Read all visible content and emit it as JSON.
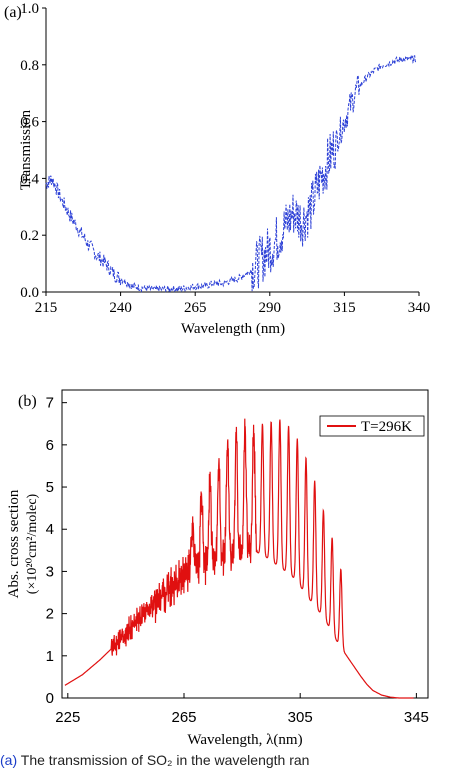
{
  "chart_data": [
    {
      "panel_label": "(a)",
      "type": "line",
      "xlabel": "Wavelength (nm)",
      "ylabel": "Transmission",
      "xlim": [
        215,
        340
      ],
      "ylim": [
        0.0,
        1.0
      ],
      "xticks": [
        "215",
        "240",
        "265",
        "290",
        "315",
        "340"
      ],
      "yticks": [
        "0.0",
        "0.2",
        "0.4",
        "0.6",
        "0.8",
        "1.0"
      ],
      "series_color": "#2b3fd6",
      "series": [
        {
          "name": "",
          "x": [
            215,
            217,
            220,
            223,
            226,
            229,
            232,
            235,
            238,
            241,
            244,
            247,
            250,
            253,
            256,
            259,
            262,
            265,
            268,
            271,
            274,
            277,
            280,
            283,
            286,
            289,
            292,
            295,
            298,
            301,
            304,
            307,
            310,
            313,
            316,
            319,
            322,
            325,
            328,
            331,
            334,
            337,
            339
          ],
          "y": [
            0.38,
            0.4,
            0.33,
            0.27,
            0.22,
            0.17,
            0.13,
            0.1,
            0.06,
            0.04,
            0.02,
            0.015,
            0.01,
            0.01,
            0.01,
            0.01,
            0.015,
            0.02,
            0.02,
            0.03,
            0.03,
            0.04,
            0.05,
            0.07,
            0.1,
            0.14,
            0.18,
            0.23,
            0.28,
            0.25,
            0.3,
            0.4,
            0.47,
            0.55,
            0.63,
            0.71,
            0.75,
            0.78,
            0.8,
            0.81,
            0.82,
            0.82,
            0.82
          ]
        }
      ]
    },
    {
      "panel_label": "(b)",
      "type": "line",
      "xlabel": "Wavelength, λ(nm)",
      "ylabel_line1": "Abs. cross section",
      "ylabel_line2": "(×10²⁰cm²/molec)",
      "xlim": [
        223,
        349
      ],
      "ylim": [
        0,
        7.3
      ],
      "xticks": [
        "225",
        "265",
        "305",
        "345"
      ],
      "yticks": [
        "0",
        "1",
        "2",
        "3",
        "4",
        "5",
        "6",
        "7"
      ],
      "legend_position": "top-right",
      "series_color": "#e01010",
      "series": [
        {
          "name": "T=296K",
          "x": [
            224,
            230,
            236,
            242,
            248,
            254,
            258,
            262,
            266,
            268,
            270,
            272,
            274,
            276,
            278,
            280,
            282,
            284,
            286,
            288,
            290,
            292,
            294,
            296,
            298,
            300,
            302,
            304,
            306,
            308,
            310,
            312,
            314,
            316,
            318,
            320,
            322,
            324,
            326,
            328,
            330,
            333,
            336,
            339,
            342,
            344
          ],
          "y": [
            0.3,
            0.55,
            0.9,
            1.3,
            1.75,
            2.2,
            2.5,
            2.75,
            3.0,
            3.05,
            3.1,
            3.15,
            3.2,
            3.25,
            3.3,
            3.35,
            3.4,
            3.4,
            3.45,
            3.5,
            3.45,
            3.4,
            3.3,
            3.2,
            3.1,
            3.0,
            2.9,
            2.75,
            2.55,
            2.35,
            2.2,
            2.0,
            1.8,
            1.55,
            1.3,
            1.1,
            0.9,
            0.7,
            0.5,
            0.32,
            0.18,
            0.07,
            0.02,
            0.0,
            0.0,
            0.0
          ]
        }
      ],
      "peaks": {
        "x": [
          268,
          271,
          274,
          277,
          280,
          283,
          286,
          289,
          292,
          295,
          298,
          301,
          304,
          307,
          310,
          313,
          316,
          319
        ],
        "y": [
          4.2,
          4.8,
          5.2,
          5.7,
          6.0,
          6.3,
          6.4,
          6.45,
          6.5,
          6.55,
          6.6,
          6.45,
          6.15,
          5.7,
          5.15,
          4.45,
          3.8,
          3.05
        ]
      }
    }
  ],
  "caption": {
    "label": "(a)",
    "text": "The transmission of SO₂ in the wavelength ran"
  }
}
